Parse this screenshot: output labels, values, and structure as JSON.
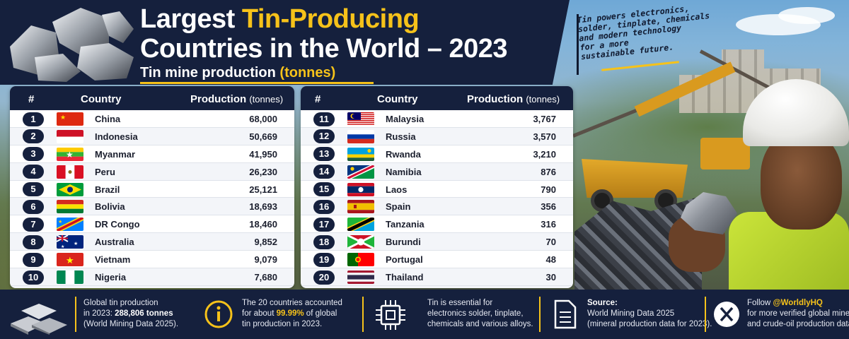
{
  "header": {
    "title_part1": "Largest ",
    "title_accent": "Tin-Producing",
    "title_line2": "Countries in the World – 2023",
    "subtitle": "Tin mine production ",
    "subtitle_accent": "(tonnes)"
  },
  "note": {
    "lines": [
      "Tin powers electronics,",
      "solder, tinplate, chemicals",
      "and modern technology",
      "for a more",
      "sustainable future."
    ]
  },
  "table_headers": {
    "rank": "#",
    "country": "Country",
    "production": "Production",
    "unit": "(tonnes)"
  },
  "colors": {
    "navy": "#15203d",
    "accent": "#f6c21a"
  },
  "chart_data": {
    "type": "table",
    "title": "Largest Tin-Producing Countries in the World – 2023",
    "subtitle": "Tin mine production (tonnes)",
    "columns": [
      "#",
      "Country",
      "Production (tonnes)"
    ],
    "rows": [
      {
        "rank": "1",
        "country": "China",
        "production": "68,000",
        "flag": "china"
      },
      {
        "rank": "2",
        "country": "Indonesia",
        "production": "50,669",
        "flag": "indonesia"
      },
      {
        "rank": "3",
        "country": "Myanmar",
        "production": "41,950",
        "flag": "myanmar"
      },
      {
        "rank": "4",
        "country": "Peru",
        "production": "26,230",
        "flag": "peru"
      },
      {
        "rank": "5",
        "country": "Brazil",
        "production": "25,121",
        "flag": "brazil"
      },
      {
        "rank": "6",
        "country": "Bolivia",
        "production": "18,693",
        "flag": "bolivia"
      },
      {
        "rank": "7",
        "country": "DR Congo",
        "production": "18,460",
        "flag": "drcongo"
      },
      {
        "rank": "8",
        "country": "Australia",
        "production": "9,852",
        "flag": "australia"
      },
      {
        "rank": "9",
        "country": "Vietnam",
        "production": "9,079",
        "flag": "vietnam"
      },
      {
        "rank": "10",
        "country": "Nigeria",
        "production": "7,680",
        "flag": "nigeria"
      },
      {
        "rank": "11",
        "country": "Malaysia",
        "production": "3,767",
        "flag": "malaysia"
      },
      {
        "rank": "12",
        "country": "Russia",
        "production": "3,570",
        "flag": "russia"
      },
      {
        "rank": "13",
        "country": "Rwanda",
        "production": "3,210",
        "flag": "rwanda"
      },
      {
        "rank": "14",
        "country": "Namibia",
        "production": "876",
        "flag": "namibia"
      },
      {
        "rank": "15",
        "country": "Laos",
        "production": "790",
        "flag": "laos"
      },
      {
        "rank": "16",
        "country": "Spain",
        "production": "356",
        "flag": "spain"
      },
      {
        "rank": "17",
        "country": "Tanzania",
        "production": "316",
        "flag": "tanzania"
      },
      {
        "rank": "18",
        "country": "Burundi",
        "production": "70",
        "flag": "burundi"
      },
      {
        "rank": "19",
        "country": "Portugal",
        "production": "48",
        "flag": "portugal"
      },
      {
        "rank": "20",
        "country": "Thailand",
        "production": "30",
        "flag": "thailand"
      }
    ]
  },
  "footer": {
    "global": {
      "l1": "Global tin production",
      "l2a": "in 2023: ",
      "l2b": "288,806 tonnes",
      "l3": "(World Mining Data 2025)."
    },
    "share": {
      "l1": "The 20 countries accounted",
      "l2a": "for about ",
      "l2b": "99.99%",
      "l2c": " of global",
      "l3": "tin production in 2023."
    },
    "uses": {
      "l1": "Tin is essential for",
      "l2": "electronics solder, tinplate,",
      "l3": "chemicals and various alloys."
    },
    "source": {
      "l1": "Source:",
      "l2": "World Mining Data 2025",
      "l3": "(mineral production data for 2023)."
    },
    "follow": {
      "l1a": "Follow ",
      "l1b": "@WorldlyHQ",
      "l2": "for more verified global mineral",
      "l3": "and crude-oil production data."
    }
  }
}
